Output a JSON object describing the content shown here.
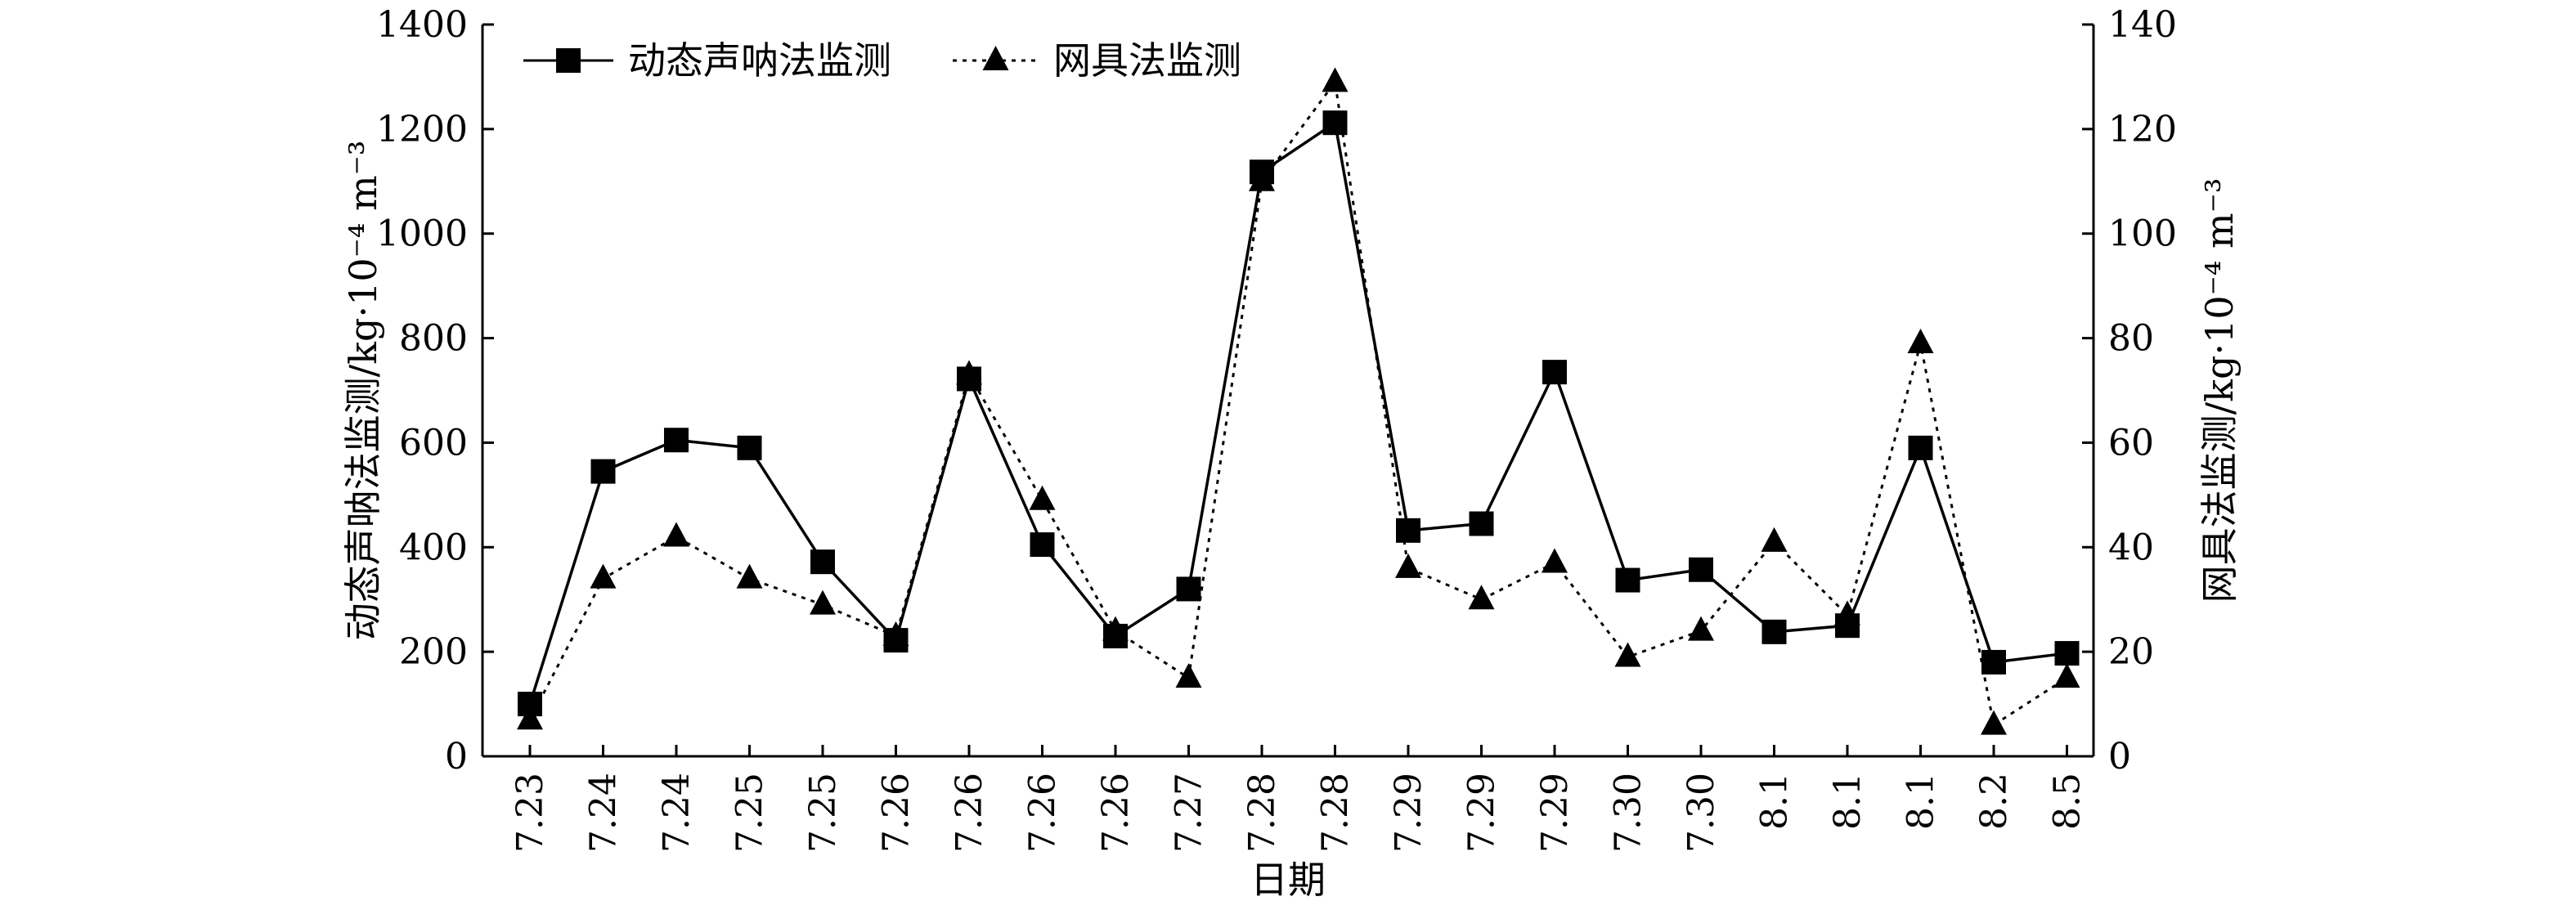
{
  "chart_data": {
    "type": "line",
    "xlabel": "日期",
    "ylabel_left": "动态声呐法监测/kg·10⁻⁴ m⁻³",
    "ylabel_right": "网具法监测/kg·10⁻⁴ m⁻³",
    "categories": [
      "7.23",
      "7.24",
      "7.24",
      "7.25",
      "7.25",
      "7.26",
      "7.26",
      "7.26",
      "7.26",
      "7.27",
      "7.28",
      "7.28",
      "7.29",
      "7.29",
      "7.29",
      "7.30",
      "7.30",
      "8.1",
      "8.1",
      "8.1",
      "8.2",
      "8.5"
    ],
    "ylim_left": [
      0,
      1400
    ],
    "yticks_left": [
      0,
      200,
      400,
      600,
      800,
      1000,
      1200,
      1400
    ],
    "ylim_right": [
      0,
      140
    ],
    "yticks_right": [
      0,
      20,
      40,
      60,
      80,
      100,
      120,
      140
    ],
    "grid": false,
    "legend_position": "top-left",
    "series": [
      {
        "name": "动态声呐法监测",
        "axis": "left",
        "marker": "square",
        "line_style": "solid",
        "color": "#000000",
        "values": [
          100,
          545,
          605,
          590,
          372,
          222,
          722,
          405,
          230,
          320,
          1118,
          1212,
          432,
          445,
          735,
          337,
          357,
          238,
          250,
          590,
          180,
          197
        ]
      },
      {
        "name": "网具法监测",
        "axis": "right",
        "marker": "triangle",
        "line_style": "dotted",
        "color": "#000000",
        "values": [
          7,
          34,
          42,
          34,
          29,
          23,
          73,
          49,
          24,
          15,
          110,
          129,
          36,
          30,
          37,
          19,
          24,
          41,
          27,
          79,
          6,
          15
        ]
      }
    ]
  }
}
